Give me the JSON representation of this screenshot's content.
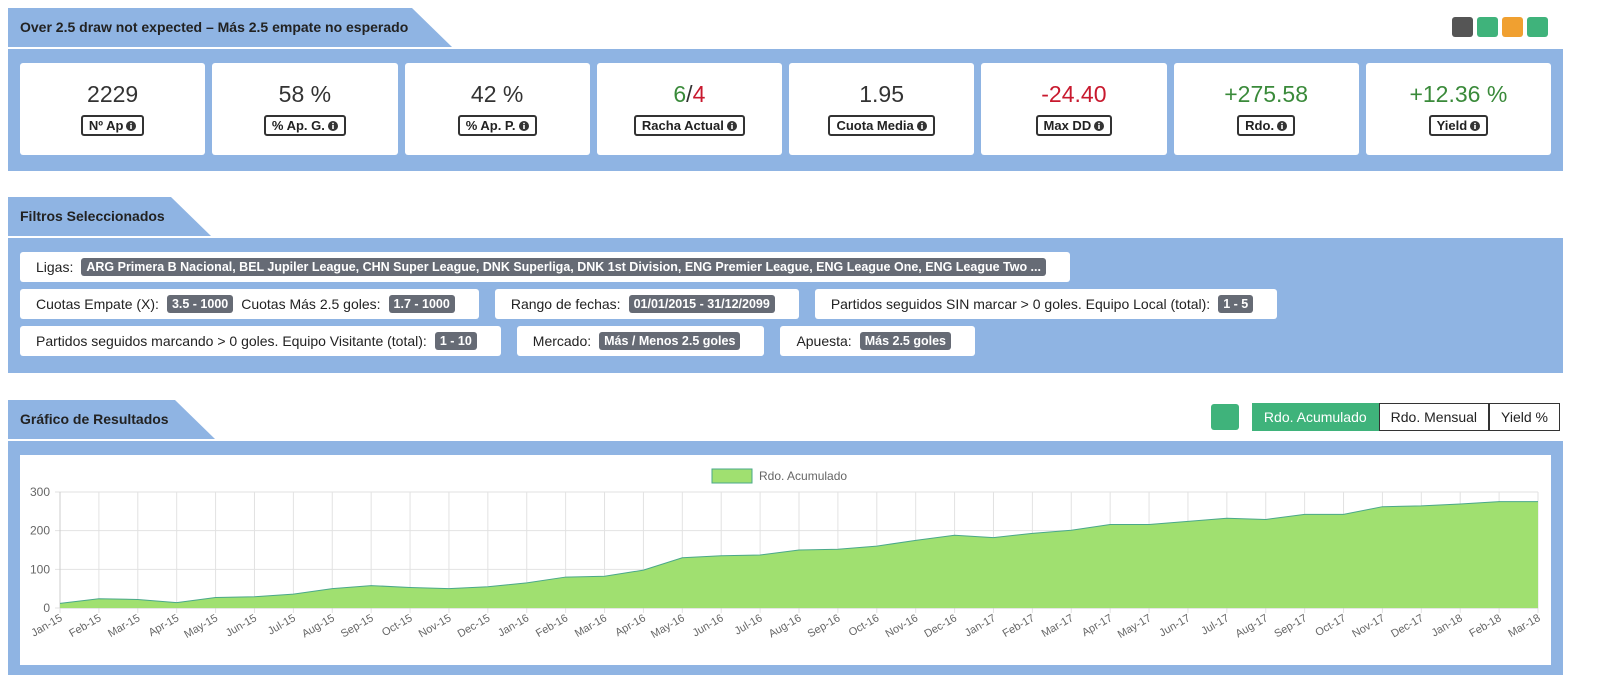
{
  "header": {
    "title": "Over 2.5 draw not expected – Más 2.5 empate no esperado"
  },
  "stats": [
    {
      "value": "2229",
      "label": "Nº Ap",
      "color": "#333333"
    },
    {
      "value": "58 %",
      "label": "% Ap. G.",
      "color": "#333333"
    },
    {
      "value": "42 %",
      "label": "% Ap. P.",
      "color": "#333333"
    },
    {
      "value": [
        "6",
        "/",
        "4"
      ],
      "label": "Racha Actual",
      "color": [
        "#3a8a3a",
        "#333333",
        "#c8192e"
      ]
    },
    {
      "value": "1.95",
      "label": "Cuota Media",
      "color": "#333333"
    },
    {
      "value": "-24.40",
      "label": "Max DD",
      "color": "#c8192e"
    },
    {
      "value": "+275.58",
      "label": "Rdo.",
      "color": "#3a8a3a"
    },
    {
      "value": "+12.36 %",
      "label": "Yield",
      "color": "#3a8a3a"
    }
  ],
  "filters": {
    "title": "Filtros Seleccionados",
    "rows": [
      [
        [
          {
            "label": "Ligas:",
            "badge": "ARG Primera B Nacional, BEL Jupiler League, CHN Super League, DNK Superliga, DNK 1st Division, ENG Premier League, ENG League One, ENG League Two ..."
          }
        ]
      ],
      [
        [
          {
            "label": "Cuotas Empate (X):",
            "badge": "3.5 - 1000"
          },
          {
            "label": "Cuotas Más 2.5 goles:",
            "badge": "1.7 - 1000"
          }
        ],
        [
          {
            "label": "Rango de fechas:",
            "badge": "01/01/2015 - 31/12/2099"
          }
        ],
        [
          {
            "label": "Partidos seguidos SIN marcar > 0 goles. Equipo Local (total):",
            "badge": "1 - 5"
          }
        ]
      ],
      [
        [
          {
            "label": "Partidos seguidos marcando > 0 goles. Equipo Visitante (total):",
            "badge": "1 - 10"
          }
        ],
        [
          {
            "label": "Mercado:",
            "badge": "Más / Menos 2.5 goles"
          }
        ],
        [
          {
            "label": "Apuesta:",
            "badge": "Más 2.5 goles"
          }
        ]
      ]
    ]
  },
  "results": {
    "title": "Gráfico de Resultados",
    "buttons": [
      "Rdo. Acumulado",
      "Rdo. Mensual",
      "Yield %"
    ]
  },
  "chart_data": {
    "type": "area",
    "categories": [
      "Jan-15",
      "Feb-15",
      "Mar-15",
      "Apr-15",
      "May-15",
      "Jun-15",
      "Jul-15",
      "Aug-15",
      "Sep-15",
      "Oct-15",
      "Nov-15",
      "Dec-15",
      "Jan-16",
      "Feb-16",
      "Mar-16",
      "Apr-16",
      "May-16",
      "Jun-16",
      "Jul-16",
      "Aug-16",
      "Sep-16",
      "Oct-16",
      "Nov-16",
      "Dec-16",
      "Jan-17",
      "Feb-17",
      "Mar-17",
      "Apr-17",
      "May-17",
      "Jun-17",
      "Jul-17",
      "Aug-17",
      "Sep-17",
      "Oct-17",
      "Nov-17",
      "Dec-17",
      "Jan-18",
      "Feb-18",
      "Mar-18"
    ],
    "series": [
      {
        "name": "Rdo. Acumulado",
        "color": "#a0e070",
        "line_color": "#4aa88a",
        "values": [
          12,
          24,
          22,
          14,
          27,
          29,
          36,
          50,
          58,
          53,
          50,
          55,
          65,
          80,
          82,
          98,
          130,
          135,
          137,
          150,
          152,
          160,
          175,
          188,
          182,
          193,
          201,
          216,
          216,
          224,
          232,
          229,
          242,
          242,
          262,
          264,
          269,
          275,
          275
        ]
      }
    ],
    "ylim": [
      0,
      300
    ],
    "yticks": [
      0,
      100,
      200,
      300
    ],
    "grid": true,
    "legend": "top"
  }
}
